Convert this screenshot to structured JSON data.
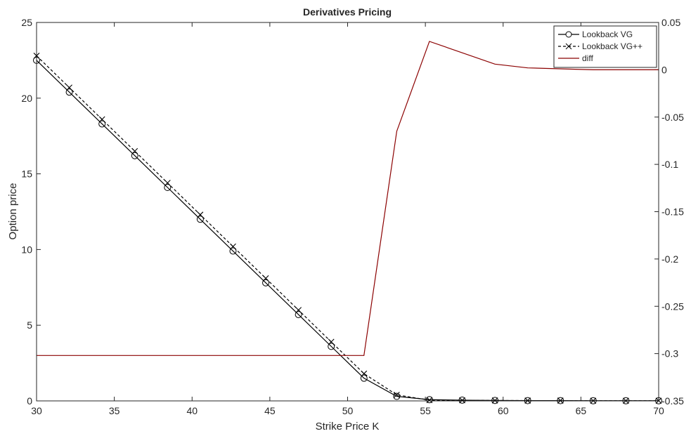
{
  "chart_data": {
    "type": "line",
    "title": "Derivatives Pricing",
    "xlabel": "Strike Price K",
    "ylabel": "Option price",
    "y2label": "",
    "xlim": [
      30,
      70
    ],
    "ylim": [
      0,
      25
    ],
    "y2lim": [
      -0.35,
      0.05
    ],
    "xticks": [
      "30",
      "35",
      "40",
      "45",
      "50",
      "55",
      "60",
      "65",
      "70"
    ],
    "yticks": [
      "0",
      "5",
      "10",
      "15",
      "20",
      "25"
    ],
    "y2ticks": [
      "-0.35",
      "-0.3",
      "-0.25",
      "-0.2",
      "-0.15",
      "-0.1",
      "-0.05",
      "0",
      "0.05"
    ],
    "grid": false,
    "legend_position": "top-right",
    "x": [
      30,
      32.105,
      34.211,
      36.316,
      38.421,
      40.526,
      42.632,
      44.737,
      46.842,
      48.947,
      51.053,
      53.158,
      55.263,
      57.368,
      59.474,
      61.579,
      63.684,
      65.789,
      67.895,
      70
    ],
    "series": [
      {
        "name": "Lookback VG",
        "axis": "left",
        "marker": "circle",
        "line": "solid",
        "color": "#000000",
        "values": [
          22.5,
          20.4,
          18.3,
          16.2,
          14.1,
          12.0,
          9.9,
          7.8,
          5.7,
          3.6,
          1.5,
          0.3,
          0.08,
          0.05,
          0.03,
          0.02,
          0.02,
          0.01,
          0.01,
          0.01
        ]
      },
      {
        "name": "Lookback VG++",
        "axis": "left",
        "marker": "x",
        "line": "dashed",
        "color": "#000000",
        "values": [
          22.8,
          20.7,
          18.6,
          16.5,
          14.4,
          12.3,
          10.2,
          8.1,
          6.0,
          3.9,
          1.8,
          0.4,
          0.05,
          0.04,
          0.03,
          0.02,
          0.02,
          0.01,
          0.01,
          0.01
        ]
      },
      {
        "name": "diff",
        "axis": "right",
        "marker": "none",
        "line": "solid",
        "color": "#8b0000",
        "points": [
          [
            30,
            -0.302
          ],
          [
            51.05,
            -0.302
          ],
          [
            53.16,
            -0.065
          ],
          [
            55.26,
            0.03
          ],
          [
            59.47,
            0.006
          ],
          [
            61.58,
            0.002
          ],
          [
            65.79,
            0.0
          ],
          [
            70,
            0.0
          ]
        ]
      }
    ]
  }
}
